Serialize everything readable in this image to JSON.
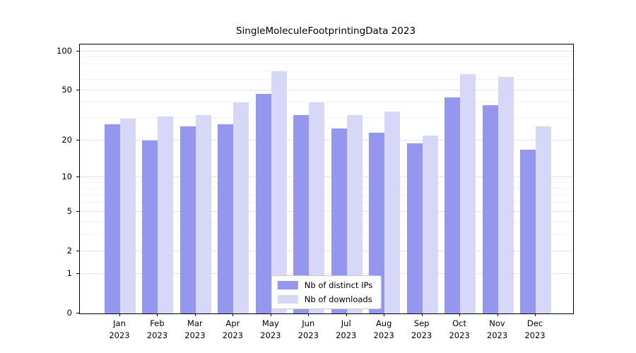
{
  "chart_data": {
    "type": "bar",
    "title": "SingleMoleculeFootprintingData 2023",
    "months": [
      "Jan",
      "Feb",
      "Mar",
      "Apr",
      "May",
      "Jun",
      "Jul",
      "Aug",
      "Sep",
      "Oct",
      "Nov",
      "Dec"
    ],
    "year": "2023",
    "series": [
      {
        "name": "Nb of distinct IPs",
        "color": "#9597ee",
        "values": [
          27,
          20,
          26,
          27,
          47,
          32,
          25,
          23,
          19,
          44,
          38,
          17
        ]
      },
      {
        "name": "Nb of downloads",
        "color": "#d7d8f8",
        "values": [
          30,
          31,
          32,
          40,
          70,
          40,
          32,
          34,
          22,
          67,
          63,
          26
        ]
      }
    ],
    "yscale": "log1p",
    "ylim": [
      0,
      113
    ],
    "yticks": [
      0,
      1,
      2,
      5,
      10,
      20,
      50,
      100
    ],
    "yticks_minor": [
      3,
      4,
      6,
      7,
      8,
      9,
      30,
      40,
      60,
      70,
      80,
      90
    ],
    "grid": true,
    "legend_position": "lower center"
  }
}
